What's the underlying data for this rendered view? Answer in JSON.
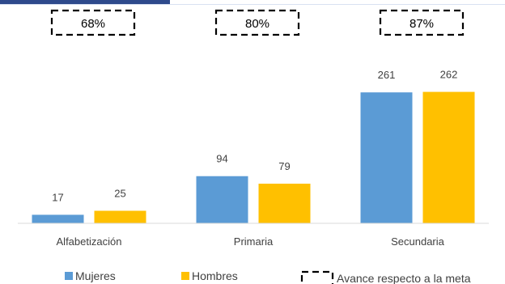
{
  "chart_data": {
    "type": "bar",
    "categories": [
      "Alfabetización",
      "Primaria",
      "Secundaria"
    ],
    "series": [
      {
        "name": "Mujeres",
        "values": [
          17,
          94,
          261
        ],
        "color": "#5B9BD5"
      },
      {
        "name": "Hombres",
        "values": [
          25,
          79,
          262
        ],
        "color": "#FFC000"
      }
    ],
    "progress": [
      "68%",
      "80%",
      "87%"
    ],
    "progress_legend": "Avance respecto a la meta",
    "title": "",
    "xlabel": "",
    "ylabel": "",
    "ylim": [
      0,
      300
    ],
    "grid": false,
    "legend_position": "bottom"
  },
  "colors": {
    "accent_bar": "#2E4A8C",
    "axis": "#D9D9D9",
    "dashed_box": "#000000"
  }
}
